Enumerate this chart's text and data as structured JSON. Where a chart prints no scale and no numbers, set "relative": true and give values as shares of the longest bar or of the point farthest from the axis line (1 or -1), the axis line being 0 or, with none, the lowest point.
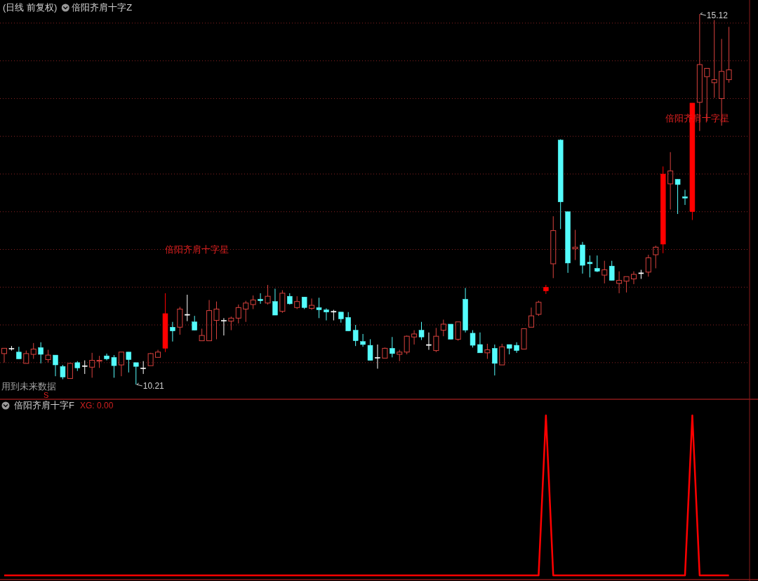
{
  "chart_data": [
    {
      "type": "candlestick",
      "title": "(日线 前复权)",
      "subtitle": "倍阳齐肩十字Z",
      "categories": [
        null,
        null,
        null,
        null,
        null,
        null,
        null,
        null,
        null,
        null,
        null,
        null,
        null,
        null,
        null,
        null,
        null,
        null,
        null,
        null,
        null,
        null,
        null,
        null,
        null,
        null,
        null,
        null,
        null,
        null,
        null,
        null,
        null,
        null,
        null,
        null,
        null,
        null,
        null,
        null,
        null,
        null,
        null,
        null,
        null,
        null,
        null,
        null,
        null,
        null,
        null,
        null,
        null,
        null,
        null,
        null,
        null,
        null,
        null,
        null,
        null,
        null,
        null,
        null,
        null,
        null,
        null,
        null,
        null,
        null,
        null,
        null,
        null,
        null,
        null,
        null,
        null,
        null,
        null,
        null,
        null,
        null,
        null,
        null,
        null,
        null,
        null,
        null,
        null,
        null,
        null,
        null,
        null,
        null,
        null,
        null,
        null,
        null,
        null,
        null
      ],
      "ohlc": [
        [
          10.62,
          10.69,
          10.5,
          10.69
        ],
        [
          10.69,
          10.72,
          10.66,
          10.69
        ],
        [
          10.64,
          10.71,
          10.55,
          10.55
        ],
        [
          10.49,
          10.66,
          10.49,
          10.62
        ],
        [
          10.61,
          10.76,
          10.55,
          10.68
        ],
        [
          10.7,
          10.77,
          10.49,
          10.61
        ],
        [
          10.54,
          10.67,
          10.5,
          10.6
        ],
        [
          10.6,
          10.6,
          10.32,
          10.47
        ],
        [
          10.45,
          10.47,
          10.28,
          10.31
        ],
        [
          10.29,
          10.5,
          10.29,
          10.49
        ],
        [
          10.5,
          10.52,
          10.39,
          10.43
        ],
        [
          10.46,
          10.53,
          10.35,
          10.46
        ],
        [
          10.44,
          10.63,
          10.3,
          10.53
        ],
        [
          10.52,
          10.59,
          10.43,
          10.53
        ],
        [
          10.59,
          10.62,
          10.53,
          10.55
        ],
        [
          10.57,
          10.6,
          10.3,
          10.46
        ],
        [
          10.47,
          10.64,
          10.32,
          10.64
        ],
        [
          10.64,
          10.64,
          10.37,
          10.54
        ],
        [
          10.5,
          10.5,
          10.21,
          10.45
        ],
        [
          10.43,
          10.52,
          10.35,
          10.43
        ],
        [
          10.46,
          10.63,
          10.46,
          10.62
        ],
        [
          10.57,
          10.67,
          10.57,
          10.64
        ],
        [
          10.69,
          11.42,
          10.64,
          11.15
        ],
        [
          10.97,
          11.04,
          10.78,
          10.92
        ],
        [
          10.97,
          11.24,
          10.87,
          11.21
        ],
        [
          11.14,
          11.4,
          11.05,
          11.14
        ],
        [
          11.04,
          11.12,
          10.93,
          10.93
        ],
        [
          10.79,
          10.95,
          10.79,
          10.86
        ],
        [
          10.79,
          11.33,
          10.79,
          11.19
        ],
        [
          11.06,
          11.31,
          10.81,
          11.21
        ],
        [
          11.06,
          11.09,
          10.86,
          11.06
        ],
        [
          11.05,
          11.11,
          10.93,
          11.09
        ],
        [
          11.09,
          11.27,
          11.02,
          11.23
        ],
        [
          11.21,
          11.32,
          11.04,
          11.29
        ],
        [
          11.27,
          11.39,
          11.21,
          11.33
        ],
        [
          11.34,
          11.42,
          11.28,
          11.32
        ],
        [
          11.29,
          11.53,
          11.27,
          11.38
        ],
        [
          11.31,
          11.48,
          11.13,
          11.13
        ],
        [
          11.18,
          11.46,
          11.16,
          11.42
        ],
        [
          11.38,
          11.42,
          11.27,
          11.28
        ],
        [
          11.23,
          11.38,
          11.21,
          11.31
        ],
        [
          11.37,
          11.37,
          11.21,
          11.23
        ],
        [
          11.22,
          11.35,
          11.2,
          11.26
        ],
        [
          11.23,
          11.36,
          11.09,
          11.2
        ],
        [
          11.2,
          11.22,
          11.06,
          11.17
        ],
        [
          11.18,
          11.2,
          11.06,
          11.18
        ],
        [
          11.17,
          11.17,
          11.03,
          11.08
        ],
        [
          11.1,
          11.17,
          10.92,
          10.92
        ],
        [
          10.93,
          11.0,
          10.72,
          10.79
        ],
        [
          10.78,
          10.88,
          10.71,
          10.74
        ],
        [
          10.73,
          10.81,
          10.53,
          10.53
        ],
        [
          10.57,
          10.74,
          10.42,
          10.57
        ],
        [
          10.56,
          10.7,
          10.56,
          10.69
        ],
        [
          10.69,
          10.84,
          10.57,
          10.62
        ],
        [
          10.61,
          10.67,
          10.52,
          10.64
        ],
        [
          10.64,
          10.86,
          10.61,
          10.85
        ],
        [
          10.84,
          10.93,
          10.74,
          10.88
        ],
        [
          10.93,
          11.04,
          10.8,
          10.84
        ],
        [
          10.74,
          10.9,
          10.67,
          10.74
        ],
        [
          10.66,
          10.96,
          10.64,
          10.85
        ],
        [
          10.93,
          11.07,
          10.85,
          11.01
        ],
        [
          11.01,
          11.01,
          10.81,
          10.81
        ],
        [
          10.81,
          11.04,
          10.79,
          11.04
        ],
        [
          11.34,
          11.49,
          10.9,
          10.93
        ],
        [
          10.89,
          10.93,
          10.7,
          10.73
        ],
        [
          10.74,
          10.9,
          10.63,
          10.63
        ],
        [
          10.63,
          10.75,
          10.55,
          10.67
        ],
        [
          10.69,
          10.74,
          10.33,
          10.49
        ],
        [
          10.47,
          10.75,
          10.47,
          10.71
        ],
        [
          10.74,
          10.74,
          10.61,
          10.69
        ],
        [
          10.73,
          10.77,
          10.63,
          10.66
        ],
        [
          10.68,
          10.95,
          10.68,
          10.95
        ],
        [
          10.97,
          11.23,
          10.97,
          11.12
        ],
        [
          11.14,
          11.32,
          11.12,
          11.3
        ],
        [
          11.45,
          11.53,
          11.41,
          11.5
        ],
        [
          11.81,
          12.44,
          11.62,
          12.25
        ],
        [
          13.45,
          13.46,
          12.27,
          12.63
        ],
        [
          12.5,
          12.5,
          11.69,
          11.82
        ],
        [
          12.01,
          12.26,
          11.86,
          12.03
        ],
        [
          12.06,
          12.1,
          11.68,
          11.79
        ],
        [
          11.83,
          11.92,
          11.63,
          11.81
        ],
        [
          11.75,
          11.92,
          11.7,
          11.71
        ],
        [
          11.66,
          11.85,
          11.55,
          11.73
        ],
        [
          11.78,
          11.85,
          11.59,
          11.59
        ],
        [
          11.55,
          11.71,
          11.42,
          11.59
        ],
        [
          11.58,
          11.64,
          11.43,
          11.64
        ],
        [
          11.61,
          11.71,
          11.54,
          11.67
        ],
        [
          11.69,
          11.73,
          11.61,
          11.69
        ],
        [
          11.7,
          11.93,
          11.64,
          11.89
        ],
        [
          11.93,
          12.05,
          11.75,
          12.03
        ],
        [
          12.07,
          13.1,
          11.95,
          13.0
        ],
        [
          12.87,
          13.29,
          12.53,
          13.04
        ],
        [
          12.93,
          12.93,
          12.47,
          12.86
        ],
        [
          12.7,
          12.79,
          12.59,
          12.68
        ],
        [
          12.5,
          13.94,
          12.39,
          13.94
        ],
        [
          13.95,
          15.12,
          13.57,
          14.45
        ],
        [
          14.29,
          14.4,
          13.7,
          14.4
        ],
        [
          14.21,
          15.04,
          14.01,
          14.25
        ],
        [
          14.0,
          14.79,
          13.64,
          14.36
        ],
        [
          14.25,
          14.95,
          14.21,
          14.38
        ]
      ],
      "colors": [
        "#d8413d",
        "#ffffff",
        "#54fcfc",
        "#d8413d",
        "#d8413d",
        "#54fcfc",
        "#d8413d",
        "#54fcfc",
        "#54fcfc",
        "#d8413d",
        "#54fcfc",
        "#ffffff",
        "#d8413d",
        "#d8413d",
        "#54fcfc",
        "#54fcfc",
        "#d8413d",
        "#54fcfc",
        "#54fcfc",
        "#ffffff",
        "#d8413d",
        "#d8413d",
        "#ff0000",
        "#54fcfc",
        "#d8413d",
        "#ffffff",
        "#54fcfc",
        "#d8413d",
        "#d8413d",
        "#d8413d",
        "#ffffff",
        "#d8413d",
        "#d8413d",
        "#d8413d",
        "#d8413d",
        "#54fcfc",
        "#d8413d",
        "#54fcfc",
        "#d8413d",
        "#54fcfc",
        "#d8413d",
        "#54fcfc",
        "#d8413d",
        "#54fcfc",
        "#54fcfc",
        "#ffffff",
        "#54fcfc",
        "#54fcfc",
        "#54fcfc",
        "#54fcfc",
        "#54fcfc",
        "#ffffff",
        "#d8413d",
        "#54fcfc",
        "#d8413d",
        "#d8413d",
        "#d8413d",
        "#54fcfc",
        "#ffffff",
        "#d8413d",
        "#d8413d",
        "#54fcfc",
        "#d8413d",
        "#54fcfc",
        "#54fcfc",
        "#54fcfc",
        "#d8413d",
        "#54fcfc",
        "#d8413d",
        "#54fcfc",
        "#54fcfc",
        "#d8413d",
        "#d8413d",
        "#d8413d",
        "#ff0000",
        "#d8413d",
        "#54fcfc",
        "#54fcfc",
        "#d8413d",
        "#54fcfc",
        "#54fcfc",
        "#54fcfc",
        "#d8413d",
        "#54fcfc",
        "#d8413d",
        "#d8413d",
        "#d8413d",
        "#ffffff",
        "#d8413d",
        "#d8413d",
        "#ff0000",
        "#d8413d",
        "#54fcfc",
        "#54fcfc",
        "#ff0000",
        "#d8413d",
        "#d8413d",
        "#d8413d",
        "#d8413d",
        "#d8413d"
      ],
      "yticks": [
        {
          "value": 10.5,
          "label": null
        },
        {
          "value": 11.0,
          "label": null
        },
        {
          "value": 11.5,
          "label": null
        },
        {
          "value": 12.0,
          "label": null
        },
        {
          "value": 12.5,
          "label": null
        },
        {
          "value": 13.0,
          "label": null
        },
        {
          "value": 13.5,
          "label": null
        },
        {
          "value": 14.0,
          "label": null
        },
        {
          "value": 14.5,
          "label": null
        },
        {
          "value": 15.0,
          "label": null
        }
      ],
      "grid": "y",
      "annotations": [
        "倍阳齐肩十字星",
        "倍阳齐肩十字星",
        "用到未来数据",
        "S",
        "10.21",
        "15.12"
      ]
    },
    {
      "type": "line",
      "title": "倍阳齐肩十字F",
      "subtitle": "XG: 0.00",
      "categories": [
        null,
        null,
        null,
        null,
        null,
        null,
        null,
        null,
        null,
        null,
        null,
        null,
        null,
        null,
        null,
        null,
        null,
        null,
        null,
        null,
        null,
        null,
        null,
        null,
        null,
        null,
        null,
        null,
        null,
        null,
        null,
        null,
        null,
        null,
        null,
        null,
        null,
        null,
        null,
        null,
        null,
        null,
        null,
        null,
        null,
        null,
        null,
        null,
        null,
        null,
        null,
        null,
        null,
        null,
        null,
        null,
        null,
        null,
        null,
        null,
        null,
        null,
        null,
        null,
        null,
        null,
        null,
        null,
        null,
        null,
        null,
        null,
        null,
        null,
        null,
        null,
        null,
        null,
        null,
        null,
        null,
        null,
        null,
        null,
        null,
        null,
        null,
        null,
        null,
        null,
        null,
        null,
        null,
        null,
        null,
        null,
        null,
        null,
        null,
        null
      ],
      "series": [
        {
          "color": "#ff0000",
          "values": [
            0,
            0,
            0,
            0,
            0,
            0,
            0,
            0,
            0,
            0,
            0,
            0,
            0,
            0,
            0,
            0,
            0,
            0,
            0,
            0,
            0,
            0,
            0,
            0,
            0,
            0,
            0,
            0,
            0,
            0,
            0,
            0,
            0,
            0,
            0,
            0,
            0,
            0,
            0,
            0,
            0,
            0,
            0,
            0,
            0,
            0,
            0,
            0,
            0,
            0,
            0,
            0,
            0,
            0,
            0,
            0,
            0,
            0,
            0,
            0,
            0,
            0,
            0,
            0,
            0,
            0,
            0,
            0,
            0,
            0,
            0,
            0,
            0,
            0,
            1,
            0,
            0,
            0,
            0,
            0,
            0,
            0,
            0,
            0,
            0,
            0,
            0,
            0,
            0,
            0,
            0,
            0,
            0,
            0,
            1,
            0,
            0,
            0,
            0,
            0
          ]
        }
      ],
      "relative": true
    }
  ]
}
